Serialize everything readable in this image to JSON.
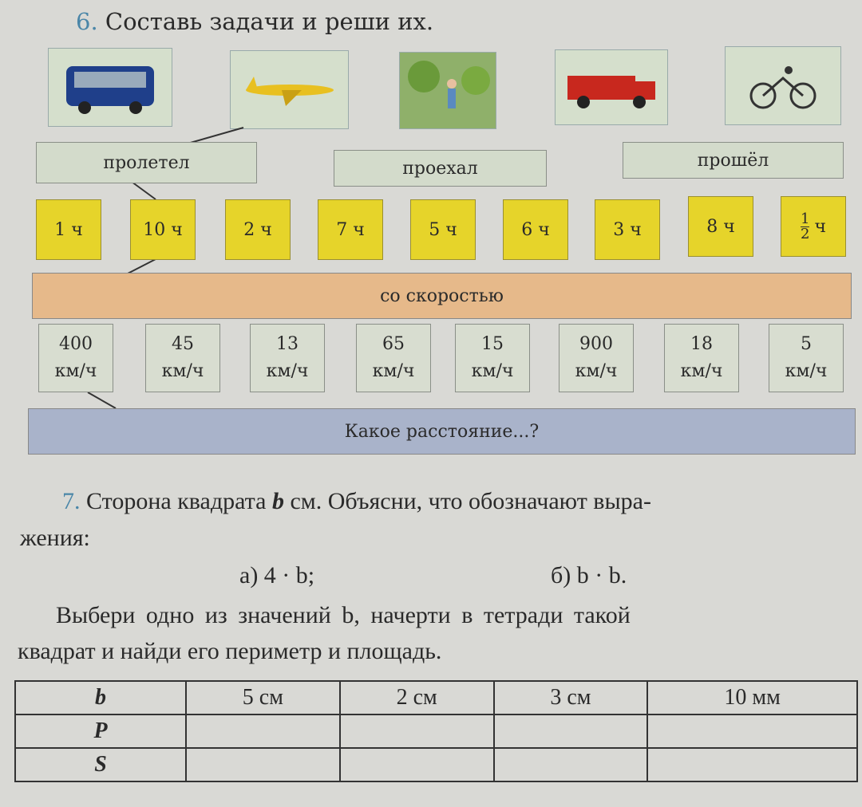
{
  "task6": {
    "number": "6.",
    "title": "Составь задачи и реши их."
  },
  "pictures": [
    "bus",
    "airplane",
    "boy-walking",
    "fire-truck",
    "cyclist"
  ],
  "verbs": [
    "пролетел",
    "проехал",
    "прошёл"
  ],
  "hours": [
    "1 ч",
    "10 ч",
    "2 ч",
    "7 ч",
    "5 ч",
    "6 ч",
    "3 ч",
    "8 ч"
  ],
  "half_hour": {
    "numerator": "1",
    "denominator": "2",
    "unit": "ч"
  },
  "speed_label": "со скоростью",
  "speeds": [
    {
      "value": "400",
      "unit": "км/ч"
    },
    {
      "value": "45",
      "unit": "км/ч"
    },
    {
      "value": "13",
      "unit": "км/ч"
    },
    {
      "value": "65",
      "unit": "км/ч"
    },
    {
      "value": "15",
      "unit": "км/ч"
    },
    {
      "value": "900",
      "unit": "км/ч"
    },
    {
      "value": "18",
      "unit": "км/ч"
    },
    {
      "value": "5",
      "unit": "км/ч"
    }
  ],
  "question": "Какое расстояние...?",
  "task7": {
    "number": "7.",
    "line1a": "Сторона квадрата ",
    "var": "b",
    "line1b": " см. Объясни, что обозначают выра-",
    "line2": "жения:",
    "expr_a": "а) 4 · b;",
    "expr_b": "б) b · b.",
    "line3": "Выбери одно из значений b, начерти в тетради такой",
    "line4": "квадрат и найди его периметр и площадь."
  },
  "table": {
    "rows": [
      [
        "b",
        "5 см",
        "2 см",
        "3 см",
        "10 мм"
      ],
      [
        "P",
        "",
        "",
        "",
        ""
      ],
      [
        "S",
        "",
        "",
        "",
        ""
      ]
    ]
  }
}
